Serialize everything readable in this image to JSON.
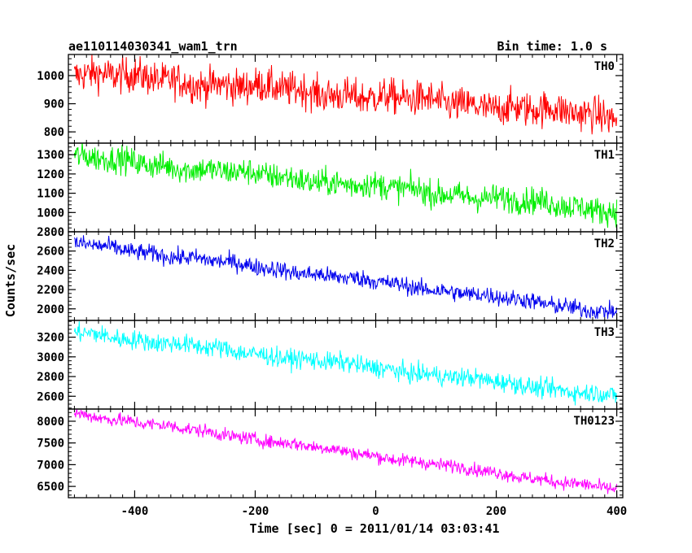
{
  "header": {
    "title": "ae110114030341_wam1_trn",
    "bin_time": "Bin time: 1.0 s"
  },
  "chart_data": {
    "type": "line",
    "xlabel": "Time [sec] 0 = 2011/01/14 03:03:41",
    "ylabel": "Counts/sec",
    "xlim": [
      -510,
      410
    ],
    "x_ticks": [
      -400,
      -200,
      0,
      200,
      400
    ],
    "x_range": [
      -500,
      400
    ],
    "panels": [
      {
        "name": "TH0",
        "color": "#ff0000",
        "ylim": [
          760,
          1075
        ],
        "y_ticks": [
          800,
          900,
          1000
        ],
        "start": 1010,
        "end": 855,
        "noise": 45
      },
      {
        "name": "TH1",
        "color": "#00ee00",
        "ylim": [
          900,
          1360
        ],
        "y_ticks": [
          1000,
          1100,
          1200,
          1300
        ],
        "start": 1290,
        "end": 1010,
        "noise": 50
      },
      {
        "name": "TH2",
        "color": "#0000ee",
        "ylim": [
          1880,
          2800
        ],
        "y_ticks": [
          2000,
          2200,
          2400,
          2600,
          2800
        ],
        "start": 2680,
        "end": 1960,
        "noise": 65
      },
      {
        "name": "TH3",
        "color": "#00ffff",
        "ylim": [
          2470,
          3370
        ],
        "y_ticks": [
          2600,
          2800,
          3000,
          3200
        ],
        "start": 3250,
        "end": 2600,
        "noise": 70
      },
      {
        "name": "TH0123",
        "color": "#ff00ff",
        "ylim": [
          6240,
          8280
        ],
        "y_ticks": [
          6500,
          7000,
          7500,
          8000
        ],
        "start": 8180,
        "end": 6420,
        "noise": 110
      }
    ]
  }
}
